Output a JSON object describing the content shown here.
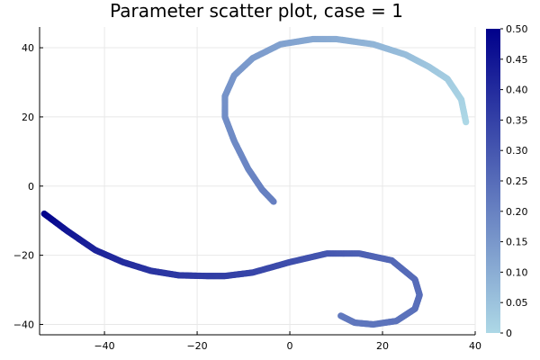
{
  "chart_data": {
    "type": "scatter",
    "title": "Parameter scatter plot, case = 1",
    "xlabel": "",
    "ylabel": "",
    "xlim": [
      -54,
      40
    ],
    "ylim": [
      -43,
      46
    ],
    "grid": true,
    "x_ticks": [
      -40,
      -20,
      0,
      20,
      40
    ],
    "y_ticks": [
      -40,
      -20,
      0,
      20,
      40
    ],
    "x_tick_labels": [
      "−40",
      "−20",
      "0",
      "20",
      "40"
    ],
    "y_tick_labels": [
      "−40",
      "−20",
      "0",
      "20",
      "40"
    ],
    "colorbar": {
      "range": [
        0,
        0.5
      ],
      "ticks": [
        0,
        0.05,
        0.1,
        0.15,
        0.2,
        0.25,
        0.3,
        0.35,
        0.4,
        0.45,
        0.5
      ],
      "tick_labels": [
        "0",
        "0.05",
        "0.10",
        "0.15",
        "0.20",
        "0.25",
        "0.30",
        "0.35",
        "0.40",
        "0.45",
        "0.50"
      ],
      "color_low": "#add8e6",
      "color_high": "#00008b"
    },
    "curve": {
      "x": [
        38,
        37,
        34,
        30,
        25,
        18,
        10,
        5,
        -2,
        -8,
        -12,
        -14,
        -14,
        -12,
        -9,
        -6,
        -3.5
      ],
      "y": [
        18.5,
        25,
        31,
        34.5,
        38,
        41,
        42.5,
        42.5,
        41,
        37,
        32,
        26,
        20,
        13,
        5,
        -1,
        -4.5
      ],
      "c": [
        0,
        0.012,
        0.025,
        0.04,
        0.06,
        0.08,
        0.1,
        0.11,
        0.125,
        0.14,
        0.15,
        0.16,
        0.17,
        0.18,
        0.19,
        0.2,
        0.205
      ]
    },
    "curve2": {
      "x": [
        -53,
        -48,
        -42,
        -36,
        -30,
        -24,
        -18,
        -14,
        -8,
        0,
        8,
        15,
        22,
        27,
        28,
        27,
        23,
        18,
        14,
        11
      ],
      "y": [
        -8,
        -13,
        -18.5,
        -22,
        -24.5,
        -25.8,
        -26,
        -26,
        -25,
        -22,
        -19.5,
        -19.5,
        -21.5,
        -27,
        -31.5,
        -35.5,
        -39,
        -40,
        -39.5,
        -37.5
      ],
      "c": [
        0.5,
        0.45,
        0.42,
        0.4,
        0.38,
        0.37,
        0.36,
        0.355,
        0.34,
        0.32,
        0.3,
        0.28,
        0.26,
        0.25,
        0.245,
        0.24,
        0.235,
        0.23,
        0.225,
        0.22
      ]
    }
  }
}
